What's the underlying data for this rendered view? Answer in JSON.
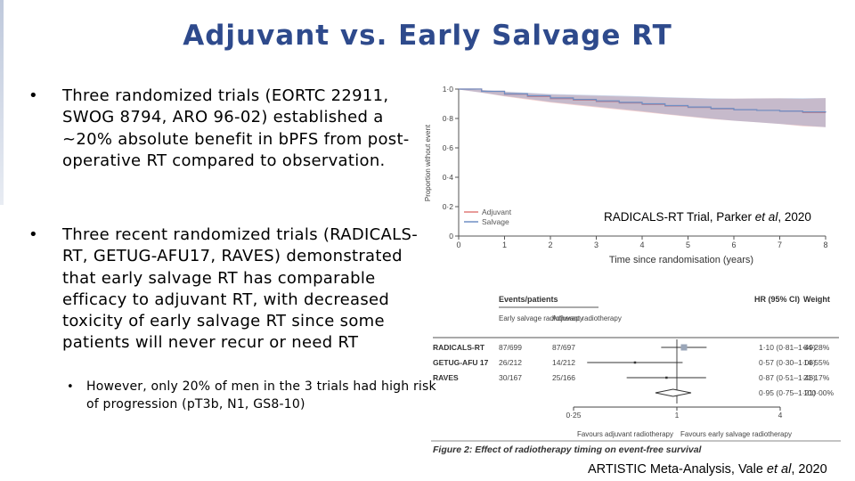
{
  "slide": {
    "title": "Adjuvant vs. Early Salvage RT",
    "bullets": [
      {
        "marker": "•",
        "text": "Three randomized trials (EORTC 22911, SWOG 8794, ARO 96-02) established a ~20% absolute benefit in bPFS from post-operative RT compared to observation."
      },
      {
        "marker": "•",
        "text": "Three recent randomized trials (RADICALS-RT, GETUG-AFU17, RAVES) demonstrated that early salvage RT has comparable efficacy to adjuvant RT, with decreased toxicity of early salvage RT since some patients will never recur or need RT"
      }
    ],
    "sub_bullet": {
      "marker": "•",
      "text": "However, only 20% of men in the 3 trials had high risk of progression (pT3b, N1, GS8-10)"
    },
    "km_caption": {
      "prefix": "RADICALS-RT Trial, Parker ",
      "italic": "et al",
      "suffix": ", 2020"
    },
    "forest_caption": {
      "prefix": "ARTISTIC Meta-Analysis, Vale ",
      "italic": "et al",
      "suffix": ", 2020"
    }
  },
  "chart_data": [
    {
      "type": "line",
      "title": "",
      "ylabel": "Proportion without event",
      "xlabel": "Time since randomisation (years)",
      "xlim": [
        0,
        8
      ],
      "ylim": [
        0,
        1.0
      ],
      "x_ticks": [
        "0",
        "1",
        "2",
        "3",
        "4",
        "5",
        "6",
        "7",
        "8"
      ],
      "y_ticks": [
        "0",
        "0·2",
        "0·4",
        "0·6",
        "0·8",
        "1·0"
      ],
      "legend": "bottom-left",
      "series": [
        {
          "name": "Adjuvant",
          "color": "#e07b78",
          "x": [
            0,
            0.5,
            1,
            1.5,
            2,
            2.5,
            3,
            3.5,
            4,
            4.5,
            5,
            5.5,
            6,
            6.5,
            7,
            7.5,
            8
          ],
          "y": [
            1.0,
            0.985,
            0.965,
            0.95,
            0.935,
            0.925,
            0.915,
            0.905,
            0.895,
            0.885,
            0.875,
            0.865,
            0.86,
            0.855,
            0.85,
            0.84,
            0.84
          ]
        },
        {
          "name": "Salvage",
          "color": "#6f8fc4",
          "x": [
            0,
            0.5,
            1,
            1.5,
            2,
            2.5,
            3,
            3.5,
            4,
            4.5,
            5,
            5.5,
            6,
            6.5,
            7,
            7.5,
            8
          ],
          "y": [
            1.0,
            0.985,
            0.968,
            0.955,
            0.94,
            0.93,
            0.92,
            0.91,
            0.9,
            0.888,
            0.878,
            0.868,
            0.86,
            0.855,
            0.85,
            0.845,
            0.84
          ]
        }
      ]
    },
    {
      "type": "table",
      "title": "Figure 2: Effect of radiotherapy timing on event-free survival",
      "columns": {
        "events": "Events/patients",
        "early": "Early salvage radiotherapy",
        "adjuvant": "Adjuvant radiotherapy",
        "hr": "HR (95% CI)",
        "weight": "Weight"
      },
      "rows": [
        {
          "trial": "RADICALS-RT",
          "early": "87/699",
          "adjuvant": "87/697",
          "hr": 1.1,
          "lo": 0.81,
          "hi": 1.49,
          "hr_text": "1·10 (0·81–1·49)",
          "weight": "64·28%"
        },
        {
          "trial": "GETUG-AFU 17",
          "early": "26/212",
          "adjuvant": "14/212",
          "hr": 0.57,
          "lo": 0.3,
          "hi": 1.08,
          "hr_text": "0·57 (0·30–1·08)",
          "weight": "14·55%"
        },
        {
          "trial": "RAVES",
          "early": "30/167",
          "adjuvant": "25/166",
          "hr": 0.87,
          "lo": 0.51,
          "hi": 1.48,
          "hr_text": "0·87 (0·51–1·48)",
          "weight": "21·17%"
        }
      ],
      "overall": {
        "hr": 0.95,
        "lo": 0.75,
        "hi": 1.21,
        "hr_text": "0·95 (0·75–1·21)",
        "weight": "100·00%"
      },
      "axis_ticks": [
        {
          "value": 0.25,
          "label": "0·25"
        },
        {
          "value": 1,
          "label": "1"
        },
        {
          "value": 4,
          "label": "4"
        }
      ],
      "favours_left": "Favours adjuvant radiotherapy",
      "favours_right": "Favours early salvage radiotherapy"
    }
  ]
}
